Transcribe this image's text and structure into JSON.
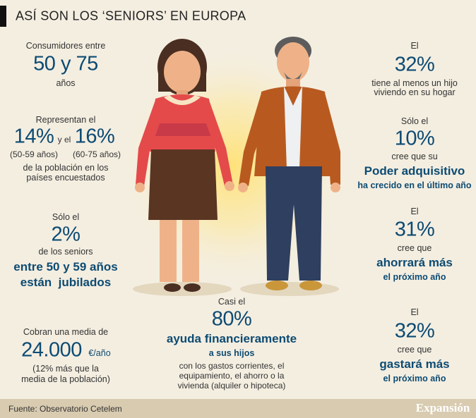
{
  "header": {
    "title": "ASÍ SON LOS ‘SENIORS’ EN EUROPA"
  },
  "left": [
    {
      "intro": "Consumidores entre",
      "figure": "50 y 75",
      "lines": [
        "años"
      ]
    },
    {
      "intro": "Representan el",
      "figure_a": "14%",
      "joiner": "y el",
      "figure_b": "16%",
      "note_a": "(50-59 años)",
      "note_b": "(60-75 años)",
      "lines": [
        "de la población en los",
        "países encuestados"
      ]
    },
    {
      "intro": "Sólo el",
      "figure": "2%",
      "lines": [
        "de los seniors"
      ],
      "highlight": [
        "entre 50 y 59 años",
        "están  jubilados"
      ]
    },
    {
      "intro": "Cobran una media de",
      "figure": "24.000",
      "unit": "€/año",
      "lines": [
        "(12% más que la",
        "media de la población)"
      ]
    }
  ],
  "center": {
    "intro": "Casi el",
    "figure": "80%",
    "highlight": "ayuda financieramente",
    "sub": "a sus hijos",
    "lines": [
      "con los gastos corrientes, el",
      "equipamiento, el ahorro o la",
      "vivienda (alquiler o hipoteca)"
    ]
  },
  "right": [
    {
      "intro": "El",
      "figure": "32%",
      "lines": [
        "tiene al menos un hijo",
        "viviendo en su hogar"
      ]
    },
    {
      "intro": "Sólo el",
      "figure": "10%",
      "lines": [
        "cree que su"
      ],
      "highlight": "Poder adquisitivo",
      "sub": "ha crecido en el último año"
    },
    {
      "intro": "El",
      "figure": "31%",
      "lines": [
        "cree que"
      ],
      "highlight": "ahorrará más",
      "sub": "el próximo año"
    },
    {
      "intro": "El",
      "figure": "32%",
      "lines": [
        "cree que"
      ],
      "highlight": "gastará más",
      "sub": "el próximo año"
    }
  ],
  "footer": {
    "source": "Fuente: Observatorio Cetelem",
    "brand": "Expansión"
  }
}
